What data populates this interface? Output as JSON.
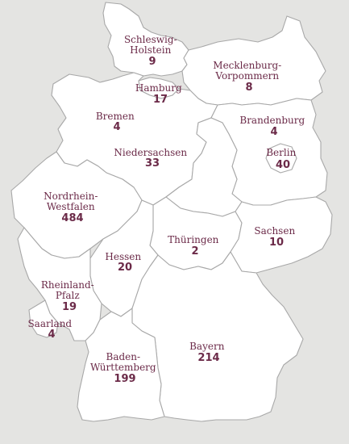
{
  "map": {
    "background_color": "#e4e4e2",
    "state_fill": "#ffffff",
    "border_color": "#a8a8a8",
    "label_color": "#6b2a48",
    "states": [
      {
        "id": "schleswig-holstein",
        "name_lines": [
          "Schleswig-",
          "Holstein"
        ],
        "value": "9"
      },
      {
        "id": "hamburg",
        "name_lines": [
          "Hamburg"
        ],
        "value": "17"
      },
      {
        "id": "mecklenburg-vorpommern",
        "name_lines": [
          "Mecklenburg-",
          "Vorpommern"
        ],
        "value": "8"
      },
      {
        "id": "bremen",
        "name_lines": [
          "Bremen"
        ],
        "value": "4"
      },
      {
        "id": "brandenburg",
        "name_lines": [
          "Brandenburg"
        ],
        "value": "4"
      },
      {
        "id": "berlin",
        "name_lines": [
          "Berlin"
        ],
        "value": "40"
      },
      {
        "id": "niedersachsen",
        "name_lines": [
          "Niedersachsen"
        ],
        "value": "33"
      },
      {
        "id": "nordrhein-westfalen",
        "name_lines": [
          "Nordrhein-",
          "Westfalen"
        ],
        "value": "484"
      },
      {
        "id": "sachsen",
        "name_lines": [
          "Sachsen"
        ],
        "value": "10"
      },
      {
        "id": "thueringen",
        "name_lines": [
          "Thüringen"
        ],
        "value": "2"
      },
      {
        "id": "hessen",
        "name_lines": [
          "Hessen"
        ],
        "value": "20"
      },
      {
        "id": "rheinland-pfalz",
        "name_lines": [
          "Rheinland-",
          "Pfalz"
        ],
        "value": "19"
      },
      {
        "id": "saarland",
        "name_lines": [
          "Saarland"
        ],
        "value": "4"
      },
      {
        "id": "bayern",
        "name_lines": [
          "Bayern"
        ],
        "value": "214"
      },
      {
        "id": "baden-wuerttemberg",
        "name_lines": [
          "Baden-",
          "Württemberg"
        ],
        "value": "199"
      }
    ]
  }
}
